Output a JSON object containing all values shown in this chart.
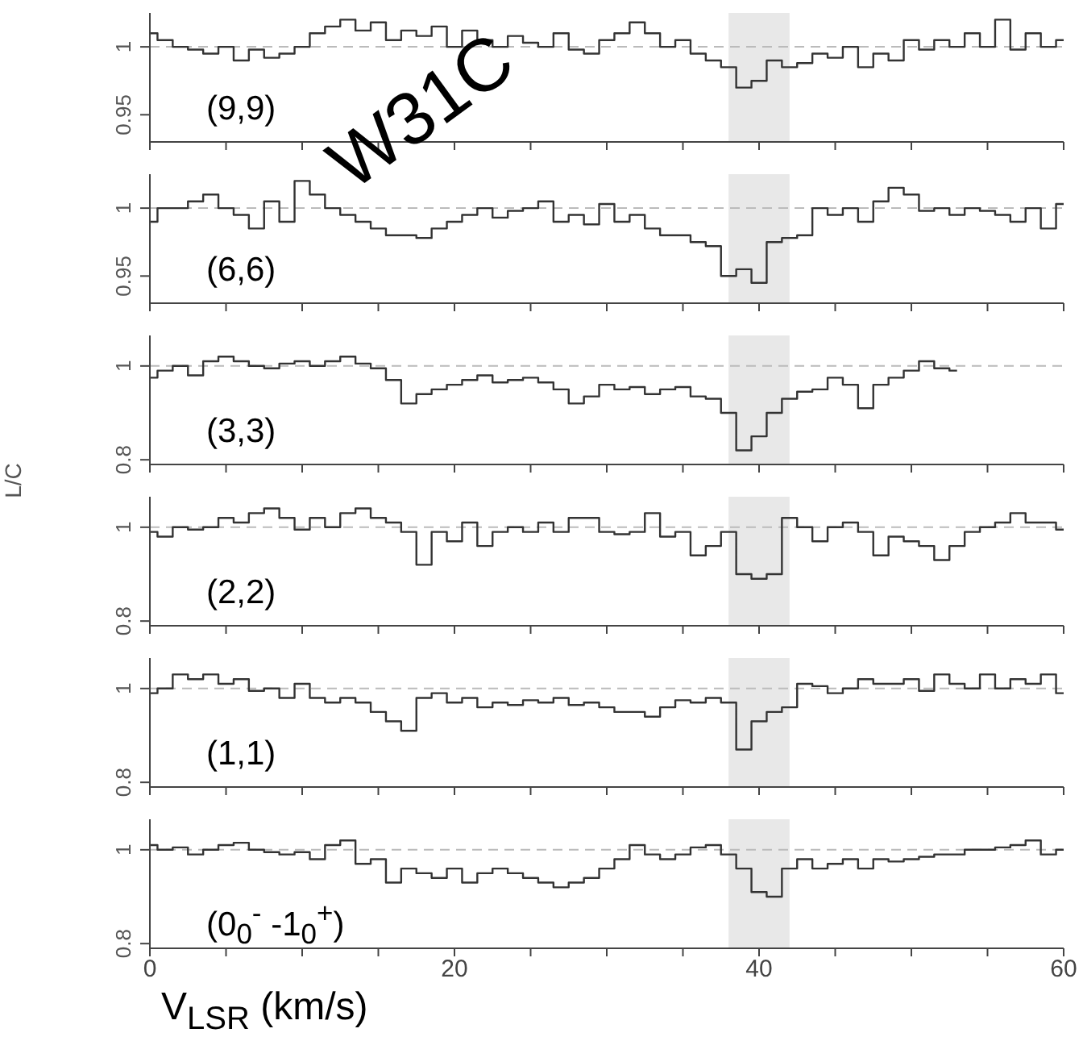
{
  "chart_data": [
    {
      "type": "step",
      "annotations": [
        "(9,9)"
      ],
      "x": [
        0,
        1,
        2,
        3,
        4,
        5,
        6,
        7,
        8,
        9,
        10,
        11,
        12,
        13,
        14,
        15,
        16,
        17,
        18,
        19,
        20,
        21,
        22,
        23,
        24,
        25,
        26,
        27,
        28,
        29,
        30,
        31,
        32,
        33,
        34,
        35,
        36,
        37,
        38,
        39,
        40,
        41,
        42,
        43,
        44,
        45,
        46,
        47,
        48,
        49,
        50,
        51,
        52,
        53,
        54,
        55,
        56,
        57,
        58,
        59,
        60
      ],
      "series": [
        {
          "color": "#333333",
          "values": [
            1.01,
            1.005,
            1.0,
            0.998,
            0.995,
            1.0,
            0.99,
            0.998,
            0.992,
            0.995,
            1.0,
            1.01,
            1.015,
            1.02,
            1.012,
            1.018,
            1.005,
            1.012,
            1.008,
            1.015,
            1.0,
            1.012,
            1.005,
            1.0,
            1.008,
            1.003,
            1.0,
            1.01,
            0.998,
            0.995,
            1.005,
            1.01,
            1.018,
            1.01,
            1.0,
            1.005,
            0.995,
            0.99,
            0.985,
            0.97,
            0.975,
            0.99,
            0.985,
            0.988,
            0.995,
            0.992,
            1.0,
            0.985,
            0.995,
            0.99,
            1.005,
            0.998,
            1.005,
            1.0,
            1.01,
            1.0,
            1.02,
            0.998,
            1.01,
            1.0,
            1.005
          ]
        }
      ],
      "xlim": [
        0,
        60
      ],
      "xticks": [
        {
          "value": 0,
          "label": null
        },
        {
          "value": 5,
          "label": null
        },
        {
          "value": 10,
          "label": null
        },
        {
          "value": 15,
          "label": null
        },
        {
          "value": 20,
          "label": null
        },
        {
          "value": 25,
          "label": null
        },
        {
          "value": 30,
          "label": null
        },
        {
          "value": 35,
          "label": null
        },
        {
          "value": 40,
          "label": null
        },
        {
          "value": 45,
          "label": null
        },
        {
          "value": 50,
          "label": null
        },
        {
          "value": 55,
          "label": null
        },
        {
          "value": 60,
          "label": null
        }
      ],
      "ylim": [
        0.93,
        1.025
      ],
      "yticks": [
        0.95,
        1
      ],
      "tick_labels": "y",
      "bands": [
        {
          "axis": "x",
          "from": 38,
          "to": 42,
          "color": "#e8e8e8"
        }
      ],
      "ref_lines": [
        {
          "axis": "y",
          "value": 1,
          "color": "#bbbbbb",
          "line_style": "dashed"
        }
      ]
    },
    {
      "type": "step",
      "annotations": [
        "(6,6)",
        "W31C"
      ],
      "x": [
        0,
        1,
        2,
        3,
        4,
        5,
        6,
        7,
        8,
        9,
        10,
        11,
        12,
        13,
        14,
        15,
        16,
        17,
        18,
        19,
        20,
        21,
        22,
        23,
        24,
        25,
        26,
        27,
        28,
        29,
        30,
        31,
        32,
        33,
        34,
        35,
        36,
        37,
        38,
        39,
        40,
        41,
        42,
        43,
        44,
        45,
        46,
        47,
        48,
        49,
        50,
        51,
        52,
        53,
        54,
        55,
        56,
        57,
        58,
        59,
        60
      ],
      "series": [
        {
          "color": "#333333",
          "values": [
            0.99,
            1.0,
            1.0,
            1.005,
            1.01,
            1.0,
            0.995,
            0.985,
            1.005,
            0.99,
            1.02,
            1.01,
            1.0,
            0.995,
            0.99,
            0.985,
            0.98,
            0.98,
            0.978,
            0.985,
            0.99,
            0.995,
            1.0,
            0.993,
            0.998,
            1.0,
            1.005,
            0.99,
            0.995,
            0.988,
            1.003,
            0.99,
            0.995,
            0.985,
            0.98,
            0.98,
            0.975,
            0.972,
            0.95,
            0.955,
            0.945,
            0.975,
            0.978,
            0.98,
            1.0,
            0.995,
            1.0,
            0.99,
            1.005,
            1.015,
            1.01,
            0.998,
            1.0,
            0.995,
            1.0,
            0.998,
            0.995,
            0.99,
            1.0,
            0.985,
            1.003
          ]
        }
      ],
      "xlim": [
        0,
        60
      ],
      "xticks": [
        {
          "value": 0,
          "label": null
        },
        {
          "value": 5,
          "label": null
        },
        {
          "value": 10,
          "label": null
        },
        {
          "value": 15,
          "label": null
        },
        {
          "value": 20,
          "label": null
        },
        {
          "value": 25,
          "label": null
        },
        {
          "value": 30,
          "label": null
        },
        {
          "value": 35,
          "label": null
        },
        {
          "value": 40,
          "label": null
        },
        {
          "value": 45,
          "label": null
        },
        {
          "value": 50,
          "label": null
        },
        {
          "value": 55,
          "label": null
        },
        {
          "value": 60,
          "label": null
        }
      ],
      "ylim": [
        0.93,
        1.025
      ],
      "yticks": [
        0.95,
        1
      ],
      "tick_labels": "y",
      "bands": [
        {
          "axis": "x",
          "from": 38,
          "to": 42,
          "color": "#e8e8e8"
        }
      ],
      "ref_lines": [
        {
          "axis": "y",
          "value": 1,
          "color": "#bbbbbb",
          "line_style": "dashed"
        }
      ]
    },
    {
      "type": "step",
      "ylabel": "L/C",
      "annotations": [
        "(3,3)"
      ],
      "x": [
        0,
        1,
        2,
        3,
        4,
        5,
        6,
        7,
        8,
        9,
        10,
        11,
        12,
        13,
        14,
        15,
        16,
        17,
        18,
        19,
        20,
        21,
        22,
        23,
        24,
        25,
        26,
        27,
        28,
        29,
        30,
        31,
        32,
        33,
        34,
        35,
        36,
        37,
        38,
        39,
        40,
        41,
        42,
        43,
        44,
        45,
        46,
        47,
        48,
        49,
        50,
        51,
        52,
        53
      ],
      "series": [
        {
          "color": "#333333",
          "values": [
            0.975,
            0.99,
            1.0,
            0.98,
            1.01,
            1.02,
            1.01,
            1.0,
            0.995,
            1.005,
            1.01,
            1.0,
            1.01,
            1.02,
            1.005,
            0.995,
            0.97,
            0.92,
            0.94,
            0.95,
            0.96,
            0.97,
            0.98,
            0.965,
            0.97,
            0.975,
            0.965,
            0.95,
            0.92,
            0.935,
            0.96,
            0.95,
            0.955,
            0.94,
            0.95,
            0.955,
            0.935,
            0.93,
            0.9,
            0.82,
            0.85,
            0.9,
            0.93,
            0.945,
            0.95,
            0.975,
            0.96,
            0.91,
            0.96,
            0.975,
            0.99,
            1.01,
            0.995,
            0.99
          ]
        }
      ],
      "xlim": [
        0,
        60
      ],
      "xticks": [
        {
          "value": 0,
          "label": null
        },
        {
          "value": 5,
          "label": null
        },
        {
          "value": 10,
          "label": null
        },
        {
          "value": 15,
          "label": null
        },
        {
          "value": 20,
          "label": null
        },
        {
          "value": 25,
          "label": null
        },
        {
          "value": 30,
          "label": null
        },
        {
          "value": 35,
          "label": null
        },
        {
          "value": 40,
          "label": null
        },
        {
          "value": 45,
          "label": null
        },
        {
          "value": 50,
          "label": null
        },
        {
          "value": 55,
          "label": null
        },
        {
          "value": 60,
          "label": null
        }
      ],
      "ylim": [
        0.79,
        1.065
      ],
      "yticks": [
        0.8,
        1
      ],
      "tick_labels": "y",
      "bands": [
        {
          "axis": "x",
          "from": 38,
          "to": 42,
          "color": "#e8e8e8"
        }
      ],
      "ref_lines": [
        {
          "axis": "y",
          "value": 1,
          "color": "#bbbbbb",
          "line_style": "dashed"
        }
      ]
    },
    {
      "type": "step",
      "annotations": [
        "(2,2)"
      ],
      "x": [
        0,
        1,
        2,
        3,
        4,
        5,
        6,
        7,
        8,
        9,
        10,
        11,
        12,
        13,
        14,
        15,
        16,
        17,
        18,
        19,
        20,
        21,
        22,
        23,
        24,
        25,
        26,
        27,
        28,
        29,
        30,
        31,
        32,
        33,
        34,
        35,
        36,
        37,
        38,
        39,
        40,
        41,
        42,
        43,
        44,
        45,
        46,
        47,
        48,
        49,
        50,
        51,
        52,
        53,
        54,
        55,
        56,
        57,
        58,
        59,
        60
      ],
      "series": [
        {
          "color": "#333333",
          "values": [
            0.99,
            0.98,
            1.0,
            0.995,
            1.0,
            1.02,
            1.01,
            1.03,
            1.04,
            1.02,
            0.995,
            1.02,
            1.0,
            1.03,
            1.04,
            1.02,
            1.01,
            0.99,
            0.92,
            0.99,
            0.97,
            1.01,
            0.96,
            0.99,
            1.0,
            0.99,
            1.01,
            0.99,
            1.02,
            1.02,
            0.99,
            0.985,
            0.99,
            1.03,
            0.98,
            0.99,
            0.94,
            0.96,
            0.99,
            0.9,
            0.89,
            0.9,
            1.02,
            1.0,
            0.97,
            1.0,
            1.01,
            0.99,
            0.94,
            0.98,
            0.97,
            0.96,
            0.93,
            0.96,
            0.99,
            1.0,
            1.01,
            1.03,
            1.01,
            1.01,
            0.995
          ]
        }
      ],
      "xlim": [
        0,
        60
      ],
      "xticks": [
        {
          "value": 0,
          "label": null
        },
        {
          "value": 5,
          "label": null
        },
        {
          "value": 10,
          "label": null
        },
        {
          "value": 15,
          "label": null
        },
        {
          "value": 20,
          "label": null
        },
        {
          "value": 25,
          "label": null
        },
        {
          "value": 30,
          "label": null
        },
        {
          "value": 35,
          "label": null
        },
        {
          "value": 40,
          "label": null
        },
        {
          "value": 45,
          "label": null
        },
        {
          "value": 50,
          "label": null
        },
        {
          "value": 55,
          "label": null
        },
        {
          "value": 60,
          "label": null
        }
      ],
      "ylim": [
        0.79,
        1.065
      ],
      "yticks": [
        0.8,
        1
      ],
      "tick_labels": "y",
      "bands": [
        {
          "axis": "x",
          "from": 38,
          "to": 42,
          "color": "#e8e8e8"
        }
      ],
      "ref_lines": [
        {
          "axis": "y",
          "value": 1,
          "color": "#bbbbbb",
          "line_style": "dashed"
        }
      ]
    },
    {
      "type": "step",
      "annotations": [
        "(1,1)"
      ],
      "x": [
        0,
        1,
        2,
        3,
        4,
        5,
        6,
        7,
        8,
        9,
        10,
        11,
        12,
        13,
        14,
        15,
        16,
        17,
        18,
        19,
        20,
        21,
        22,
        23,
        24,
        25,
        26,
        27,
        28,
        29,
        30,
        31,
        32,
        33,
        34,
        35,
        36,
        37,
        38,
        39,
        40,
        41,
        42,
        43,
        44,
        45,
        46,
        47,
        48,
        49,
        50,
        51,
        52,
        53,
        54,
        55,
        56,
        57,
        58,
        59,
        60
      ],
      "series": [
        {
          "color": "#333333",
          "values": [
            0.99,
            1.0,
            1.03,
            1.02,
            1.03,
            1.01,
            1.02,
            0.995,
            1.0,
            0.98,
            1.01,
            0.98,
            0.97,
            0.98,
            0.97,
            0.95,
            0.93,
            0.91,
            0.98,
            0.99,
            0.97,
            0.98,
            0.96,
            0.97,
            0.965,
            0.975,
            0.97,
            0.98,
            0.965,
            0.97,
            0.96,
            0.95,
            0.95,
            0.94,
            0.96,
            0.975,
            0.97,
            0.98,
            0.97,
            0.87,
            0.93,
            0.95,
            0.96,
            1.01,
            1.005,
            0.99,
            1.0,
            1.02,
            1.01,
            1.01,
            1.02,
            0.995,
            1.03,
            1.01,
            1.0,
            1.03,
            1.0,
            1.02,
            1.01,
            1.03,
            0.99
          ]
        }
      ],
      "xlim": [
        0,
        60
      ],
      "xticks": [
        {
          "value": 0,
          "label": null
        },
        {
          "value": 5,
          "label": null
        },
        {
          "value": 10,
          "label": null
        },
        {
          "value": 15,
          "label": null
        },
        {
          "value": 20,
          "label": null
        },
        {
          "value": 25,
          "label": null
        },
        {
          "value": 30,
          "label": null
        },
        {
          "value": 35,
          "label": null
        },
        {
          "value": 40,
          "label": null
        },
        {
          "value": 45,
          "label": null
        },
        {
          "value": 50,
          "label": null
        },
        {
          "value": 55,
          "label": null
        },
        {
          "value": 60,
          "label": null
        }
      ],
      "ylim": [
        0.79,
        1.065
      ],
      "yticks": [
        0.8,
        1
      ],
      "tick_labels": "y",
      "bands": [
        {
          "axis": "x",
          "from": 38,
          "to": 42,
          "color": "#e8e8e8"
        }
      ],
      "ref_lines": [
        {
          "axis": "y",
          "value": 1,
          "color": "#bbbbbb",
          "line_style": "dashed"
        }
      ]
    },
    {
      "type": "step",
      "xlabel": "V$_{LSR}$ (km/s)",
      "annotations": [
        "(0$_{0}$$^{-}$ -1$_{0}$$^{+}$)"
      ],
      "x": [
        0,
        1,
        2,
        3,
        4,
        5,
        6,
        7,
        8,
        9,
        10,
        11,
        12,
        13,
        14,
        15,
        16,
        17,
        18,
        19,
        20,
        21,
        22,
        23,
        24,
        25,
        26,
        27,
        28,
        29,
        30,
        31,
        32,
        33,
        34,
        35,
        36,
        37,
        38,
        39,
        40,
        41,
        42,
        43,
        44,
        45,
        46,
        47,
        48,
        49,
        50,
        51,
        52,
        53,
        54,
        55,
        56,
        57,
        58,
        59,
        60
      ],
      "series": [
        {
          "color": "#333333",
          "values": [
            1.01,
            1.0,
            1.005,
            0.99,
            1.0,
            1.01,
            1.015,
            1.0,
            0.995,
            0.99,
            0.995,
            0.98,
            1.01,
            1.02,
            0.97,
            0.98,
            0.93,
            0.96,
            0.95,
            0.94,
            0.96,
            0.93,
            0.95,
            0.96,
            0.95,
            0.94,
            0.93,
            0.92,
            0.93,
            0.94,
            0.96,
            0.98,
            1.01,
            0.99,
            0.98,
            0.99,
            1.005,
            1.01,
            0.99,
            0.96,
            0.91,
            0.9,
            0.96,
            0.98,
            0.96,
            0.97,
            0.98,
            0.96,
            0.98,
            0.975,
            0.98,
            0.985,
            0.99,
            0.99,
            1.0,
            1.0,
            1.005,
            1.01,
            1.02,
            0.99,
            1.0
          ]
        }
      ],
      "xlim": [
        0,
        60
      ],
      "xticks": [
        0,
        {
          "value": 5,
          "label": null
        },
        {
          "value": 10,
          "label": null
        },
        {
          "value": 15,
          "label": null
        },
        20,
        {
          "value": 25,
          "label": null
        },
        {
          "value": 30,
          "label": null
        },
        {
          "value": 35,
          "label": null
        },
        40,
        {
          "value": 45,
          "label": null
        },
        {
          "value": 50,
          "label": null
        },
        {
          "value": 55,
          "label": null
        },
        60
      ],
      "ylim": [
        0.79,
        1.065
      ],
      "yticks": [
        0.8,
        1
      ],
      "bands": [
        {
          "axis": "x",
          "from": 38,
          "to": 42,
          "color": "#e8e8e8"
        }
      ],
      "ref_lines": [
        {
          "axis": "y",
          "value": 1,
          "color": "#bbbbbb",
          "line_style": "dashed"
        }
      ]
    }
  ]
}
